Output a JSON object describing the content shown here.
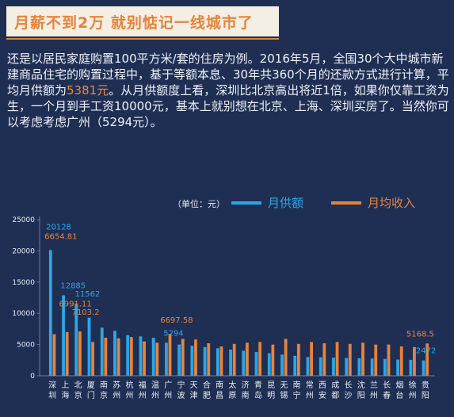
{
  "header": {
    "title": "月薪不到2万 就别惦记一线城市了"
  },
  "paragraph": {
    "before": "还是以居民家庭购置100平方米/套的住房为例。2016年5月，全国30个大中城市新建商品住宅的购置过程中，基于等额本息、30年共360个月的还款方式进行计算，平均月供额为",
    "highlight": "5381元",
    "after": "。从月供额度上看，深圳比北京高出将近1倍，如果你仅靠工资为生，一个月到手工资10000元，基本上就别想在北京、上海、深圳买房了。当然你可以考虑考虑广州（5294元）。"
  },
  "colors": {
    "payment": "#2aa7e8",
    "income": "#e8833a"
  },
  "chart_data": {
    "type": "bar",
    "unit_label": "（单位：元）",
    "ylim": [
      0,
      25000
    ],
    "yticks": [
      0,
      5000,
      10000,
      15000,
      20000,
      25000
    ],
    "grid": false,
    "legend_position": "top-right",
    "categories": [
      "深圳",
      "上海",
      "北京",
      "厦门",
      "南京",
      "苏州",
      "杭州",
      "福州",
      "温州",
      "广州",
      "宁波",
      "天津",
      "合肥",
      "南昌",
      "太原",
      "济南",
      "青岛",
      "昆明",
      "无锡",
      "南宁",
      "常州",
      "西安",
      "成都",
      "长沙",
      "沈阳",
      "兰州",
      "长春",
      "烟台",
      "徐州",
      "贵阳"
    ],
    "series": [
      {
        "name": "月供额",
        "values": [
          20128,
          12885,
          11562,
          9300,
          7700,
          7200,
          6500,
          6300,
          6100,
          5294,
          5000,
          4800,
          4600,
          4400,
          4200,
          4000,
          3800,
          3600,
          3400,
          3200,
          3000,
          2950,
          2900,
          2850,
          2800,
          2750,
          2700,
          2600,
          2550,
          2472
        ]
      },
      {
        "name": "月均收入",
        "values": [
          6654.81,
          6991.11,
          7103.2,
          5400,
          6100,
          6000,
          6200,
          5500,
          5300,
          6697.58,
          5900,
          5800,
          5200,
          4700,
          5100,
          5300,
          5400,
          5000,
          5900,
          5100,
          5400,
          5200,
          5400,
          5100,
          5300,
          5000,
          5000,
          4700,
          4600,
          5168.5
        ]
      }
    ],
    "data_labels": {
      "payment": [
        {
          "index": 0,
          "text": "20128"
        },
        {
          "index": 1,
          "text": "12885"
        },
        {
          "index": 2,
          "text": "11562"
        },
        {
          "index": 9,
          "text": "5294"
        },
        {
          "index": 29,
          "text": "2472"
        }
      ],
      "income": [
        {
          "index": 0,
          "text": "6654.81"
        },
        {
          "index": 1,
          "text": "6991.11"
        },
        {
          "index": 2,
          "text": "7103.2"
        },
        {
          "index": 9,
          "text": "6697.58"
        },
        {
          "index": 29,
          "text": "5168.5"
        }
      ]
    }
  }
}
